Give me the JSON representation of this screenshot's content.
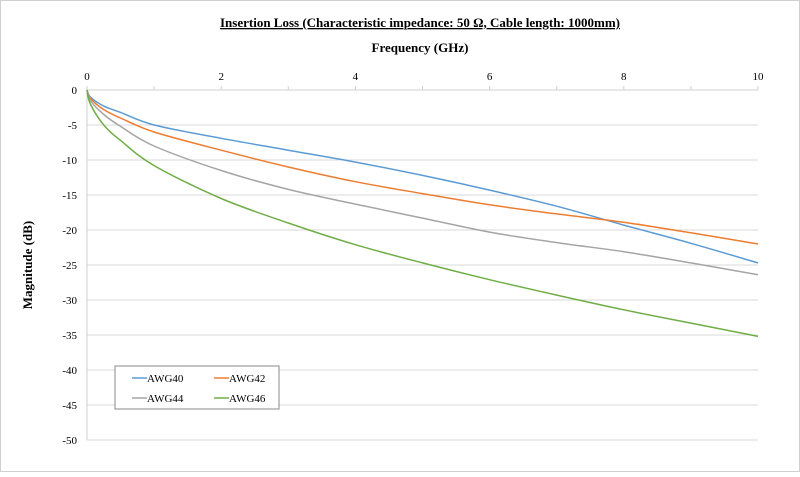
{
  "chart_data": {
    "type": "line",
    "title": "Insertion Loss (Characteristic impedance: 50 Ω, Cable length: 1000mm)",
    "xlabel": "Frequency (GHz)",
    "ylabel": "Magnitude (dB)",
    "xlim": [
      0,
      10
    ],
    "ylim": [
      -50,
      0
    ],
    "xticks": [
      "0",
      "2",
      "4",
      "6",
      "8",
      "10"
    ],
    "yticks": [
      "0",
      "-5",
      "-10",
      "-15",
      "-20",
      "-25",
      "-30",
      "-35",
      "-40",
      "-45",
      "-50"
    ],
    "grid": "horizontal",
    "x_axis_position": "top",
    "legend_placement": "bottom-left",
    "x": [
      0,
      0.05,
      0.25,
      0.5,
      1,
      2,
      3,
      4,
      5,
      6,
      7,
      8,
      9,
      10
    ],
    "series": [
      {
        "name": "AWG40",
        "color": "#5b9bd5",
        "values": [
          0,
          -1,
          -2.3,
          -3.2,
          -5,
          -6.9,
          -8.6,
          -10.3,
          -12.2,
          -14.3,
          -16.6,
          -19.3,
          -21.9,
          -24.7
        ]
      },
      {
        "name": "AWG42",
        "color": "#ed7d31",
        "values": [
          0,
          -1.2,
          -2.8,
          -4,
          -6,
          -8.6,
          -11,
          -13.1,
          -14.8,
          -16.4,
          -17.7,
          -18.9,
          -20.4,
          -22
        ]
      },
      {
        "name": "AWG44",
        "color": "#a5a5a5",
        "values": [
          0,
          -1.5,
          -3.5,
          -5.2,
          -8,
          -11.5,
          -14.2,
          -16.3,
          -18.3,
          -20.3,
          -21.8,
          -23.1,
          -24.7,
          -26.4
        ]
      },
      {
        "name": "AWG46",
        "color": "#70ad47",
        "values": [
          0,
          -2,
          -5,
          -7.2,
          -10.8,
          -15.5,
          -19,
          -22.1,
          -24.7,
          -27.1,
          -29.3,
          -31.4,
          -33.3,
          -35.2
        ]
      }
    ]
  }
}
